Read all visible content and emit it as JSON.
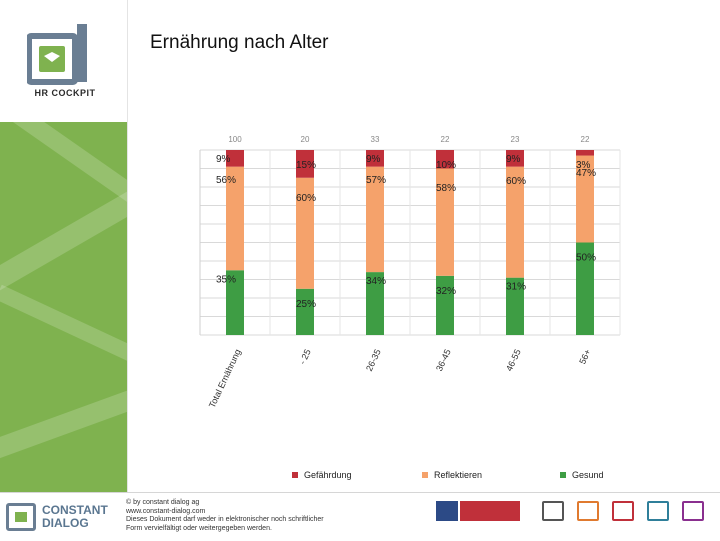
{
  "header": {
    "title": "Ernährung nach Alter",
    "logo_text": "HR COCKPIT"
  },
  "colors": {
    "gefaehrdung": "#c0303a",
    "reflektieren": "#f5a26b",
    "gesund": "#3e9d44",
    "sidebar_green": "#7fb24f",
    "brand_blue": "#5a7690"
  },
  "chart_data": {
    "type": "bar",
    "stacked": true,
    "categories": [
      "Total Ernährung",
      "- 25",
      "26-35",
      "36-45",
      "46-55",
      "56+"
    ],
    "n_labels": [
      "100",
      "20",
      "33",
      "22",
      "23",
      "22"
    ],
    "series": [
      {
        "name": "Gesund",
        "values": [
          35,
          25,
          34,
          32,
          31,
          50
        ],
        "labels": [
          "35%",
          "25%",
          "34%",
          "32%",
          "31%",
          "50%"
        ]
      },
      {
        "name": "Reflektieren",
        "values": [
          56,
          60,
          57,
          58,
          60,
          47
        ],
        "labels": [
          "56%",
          "60%",
          "57%",
          "58%",
          "60%",
          "47%"
        ]
      },
      {
        "name": "Gefährdung",
        "values": [
          9,
          15,
          9,
          10,
          9,
          3
        ],
        "labels": [
          "9%",
          "15%",
          "9%",
          "10%",
          "9%",
          "3%"
        ]
      }
    ],
    "ylim": [
      0,
      100
    ],
    "grid": true,
    "legend_position": "bottom"
  },
  "legend": [
    {
      "label": "Gefährdung",
      "color": "#c0303a"
    },
    {
      "label": "Reflektieren",
      "color": "#f5a26b"
    },
    {
      "label": "Gesund",
      "color": "#3e9d44"
    }
  ],
  "footer": {
    "company_line1": "CONSTANT",
    "company_line2": "DIALOG",
    "copyright": "© by constant dialog ag",
    "website": "www.constant-dialog.com",
    "notice_line1": "Dieses Dokument darf weder in elektronischer noch schriftlicher",
    "notice_line2": "Form vervielfältigt oder weitergegeben werden."
  }
}
